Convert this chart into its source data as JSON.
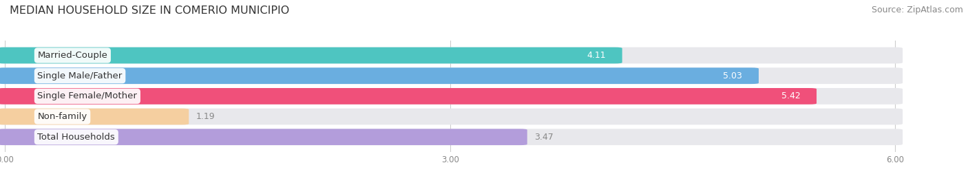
{
  "title": "MEDIAN HOUSEHOLD SIZE IN COMERIO MUNICIPIO",
  "source": "Source: ZipAtlas.com",
  "categories": [
    "Married-Couple",
    "Single Male/Father",
    "Single Female/Mother",
    "Non-family",
    "Total Households"
  ],
  "values": [
    4.11,
    5.03,
    5.42,
    1.19,
    3.47
  ],
  "bar_colors": [
    "#4ec5c1",
    "#6aaee0",
    "#f0507a",
    "#f5cfa0",
    "#b39ddb"
  ],
  "value_colors": [
    "white",
    "white",
    "white",
    "#888888",
    "#888888"
  ],
  "xlim": [
    0,
    6.36
  ],
  "xlim_display": 6.0,
  "xticks": [
    0.0,
    3.0,
    6.0
  ],
  "xtick_labels": [
    "0.00",
    "3.00",
    "6.00"
  ],
  "title_fontsize": 11.5,
  "source_fontsize": 9,
  "label_fontsize": 9.5,
  "value_fontsize": 9,
  "background_color": "#ffffff",
  "bar_background_color": "#e8e8ec"
}
